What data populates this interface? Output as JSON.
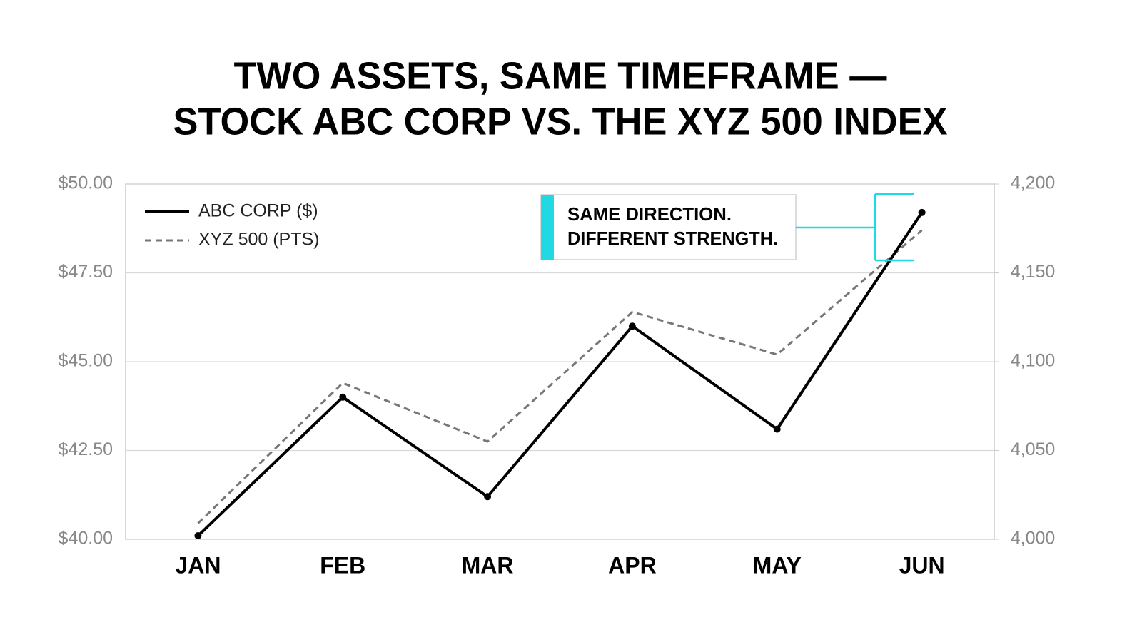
{
  "chart_data": {
    "type": "line",
    "title": [
      "TWO ASSETS, SAME TIMEFRAME —",
      "STOCK ABC CORP VS. THE XYZ 500 INDEX"
    ],
    "categories": [
      "JAN",
      "FEB",
      "MAR",
      "APR",
      "MAY",
      "JUN"
    ],
    "series": [
      {
        "name": "ABC CORP ($)",
        "color": "#000000",
        "values": [
          40.1,
          44.0,
          41.2,
          46.0,
          43.1,
          49.2
        ]
      },
      {
        "name": "XYZ 500 (PTS)",
        "color": "#777777",
        "axis": "y2",
        "values": [
          4009,
          4088,
          4055,
          4128,
          4104,
          4174
        ]
      }
    ],
    "ylim": [
      40,
      50
    ],
    "yticks": [
      {
        "value": 40,
        "label": "$40.00"
      },
      {
        "value": 42.5,
        "label": "$42.50"
      },
      {
        "value": 45,
        "label": "$45.00"
      },
      {
        "value": 47.5,
        "label": "$47.50"
      },
      {
        "value": 50,
        "label": "$50.00"
      }
    ],
    "y2lim": [
      4000,
      4200
    ],
    "y2ticks": [
      {
        "value": 4000,
        "label": "4,000"
      },
      {
        "value": 4050,
        "label": "4,050"
      },
      {
        "value": 4100,
        "label": "4,100"
      },
      {
        "value": 4150,
        "label": "4,150"
      },
      {
        "value": 4200,
        "label": "4,200"
      }
    ],
    "grid": true,
    "legend": "upper left",
    "annotation": [
      "SAME DIRECTION.",
      "DIFFERENT STRENGTH."
    ]
  }
}
